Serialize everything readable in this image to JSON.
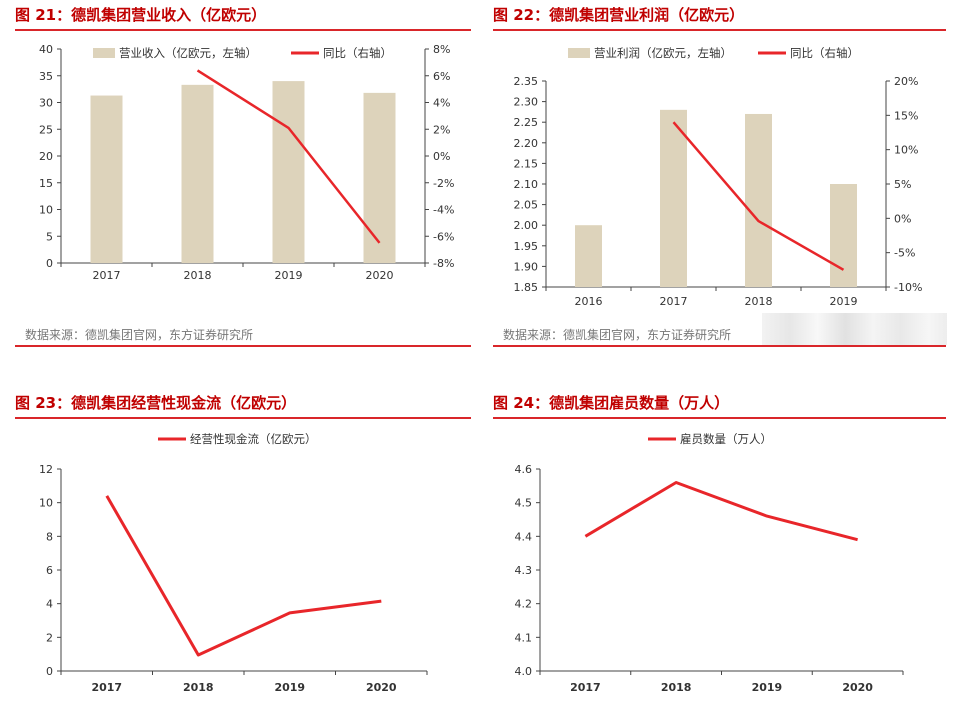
{
  "colors": {
    "bar": "#ddd3bb",
    "line": "#e8262a",
    "axis": "#444444",
    "title": "#c00000"
  },
  "panels": [
    {
      "title": "图 21：德凯集团营业收入（亿欧元）",
      "source": "数据来源：德凯集团官网，东方证券研究所"
    },
    {
      "title": "图 22：德凯集团营业利润（亿欧元）",
      "source": "数据来源：德凯集团官网，东方证券研究所"
    },
    {
      "title": "图 23：德凯集团经营性现金流（亿欧元）",
      "source": ""
    },
    {
      "title": "图 24：德凯集团雇员数量（万人）",
      "source": ""
    }
  ],
  "chart_data": [
    {
      "type": "bar",
      "categories": [
        "2017",
        "2018",
        "2019",
        "2020"
      ],
      "series": [
        {
          "name": "营业收入（亿欧元，左轴）",
          "kind": "bar",
          "axis": "left",
          "values": [
            31.3,
            33.3,
            34.0,
            31.8
          ]
        },
        {
          "name": "同比（右轴）",
          "kind": "line",
          "axis": "right",
          "values": [
            null,
            6.4,
            2.1,
            -6.5
          ]
        }
      ],
      "ylim_left": [
        0,
        40
      ],
      "yticks_left": [
        0,
        5,
        10,
        15,
        20,
        25,
        30,
        35,
        40
      ],
      "ylim_right": [
        -8,
        8
      ],
      "yticks_right": [
        "-8%",
        "-6%",
        "-4%",
        "-2%",
        "0%",
        "2%",
        "4%",
        "6%",
        "8%"
      ],
      "legend": "top"
    },
    {
      "type": "bar",
      "categories": [
        "2016",
        "2017",
        "2018",
        "2019"
      ],
      "series": [
        {
          "name": "营业利润（亿欧元，左轴）",
          "kind": "bar",
          "axis": "left",
          "values": [
            2.0,
            2.28,
            2.27,
            2.1
          ]
        },
        {
          "name": "同比（右轴）",
          "kind": "line",
          "axis": "right",
          "values": [
            null,
            14.0,
            -0.4,
            -7.5
          ]
        }
      ],
      "ylim_left": [
        1.85,
        2.35
      ],
      "yticks_left": [
        "1.85",
        "1.90",
        "1.95",
        "2.00",
        "2.05",
        "2.10",
        "2.15",
        "2.20",
        "2.25",
        "2.30",
        "2.35"
      ],
      "ylim_right": [
        -10,
        20
      ],
      "yticks_right": [
        "-10%",
        "-5%",
        "0%",
        "5%",
        "10%",
        "15%",
        "20%"
      ],
      "legend": "top"
    },
    {
      "type": "line",
      "categories": [
        "2017",
        "2018",
        "2019",
        "2020"
      ],
      "series": [
        {
          "name": "经营性现金流（亿欧元）",
          "kind": "line",
          "axis": "left",
          "values": [
            10.4,
            0.95,
            3.45,
            4.15
          ]
        }
      ],
      "ylim_left": [
        0,
        12
      ],
      "yticks_left": [
        "0",
        "2",
        "4",
        "6",
        "8",
        "10",
        "12"
      ],
      "legend": "top"
    },
    {
      "type": "line",
      "categories": [
        "2017",
        "2018",
        "2019",
        "2020"
      ],
      "series": [
        {
          "name": "雇员数量（万人）",
          "kind": "line",
          "axis": "left",
          "values": [
            4.4,
            4.56,
            4.46,
            4.39
          ]
        }
      ],
      "ylim_left": [
        4.0,
        4.6
      ],
      "yticks_left": [
        "4.0",
        "4.1",
        "4.2",
        "4.3",
        "4.4",
        "4.5",
        "4.6"
      ],
      "legend": "top"
    }
  ]
}
